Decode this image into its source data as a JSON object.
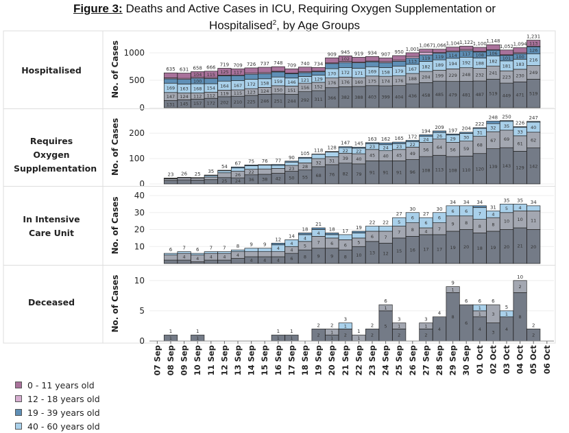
{
  "title": {
    "prefix": "Figure 3:",
    "line1": "Deaths and Active Cases in ICU, Requiring Oxygen Supplementation or",
    "line2": "Hospitalised",
    "sup": "2",
    "line2_rest": ", by Age Groups"
  },
  "chart_data": {
    "type": "bar",
    "stacked": true,
    "grid": true,
    "legend_position": "bottom-left",
    "categories": [
      "07 Sep",
      "08 Sep",
      "09 Sep",
      "10 Sep",
      "11 Sep",
      "12 Sep",
      "13 Sep",
      "14 Sep",
      "15 Sep",
      "16 Sep",
      "17 Sep",
      "18 Sep",
      "19 Sep",
      "20 Sep",
      "21 Sep",
      "22 Sep",
      "23 Sep",
      "24 Sep",
      "25 Sep",
      "26 Sep",
      "27 Sep",
      "28 Sep",
      "29 Sep",
      "30 Sep",
      "01 Oct",
      "02 Oct",
      "03 Oct",
      "04 Oct",
      "05 Oct",
      "06 Oct"
    ],
    "bar_categories": [
      "08 Sep",
      "09 Sep",
      "10 Sep",
      "11 Sep",
      "12 Sep",
      "13 Sep",
      "14 Sep",
      "15 Sep",
      "16 Sep",
      "17 Sep",
      "18 Sep",
      "19 Sep",
      "20 Sep",
      "21 Sep",
      "22 Sep",
      "23 Sep",
      "24 Sep",
      "25 Sep",
      "26 Sep",
      "27 Sep",
      "28 Sep",
      "29 Sep",
      "30 Sep",
      "01 Oct",
      "02 Oct",
      "03 Oct",
      "04 Oct",
      "05 Oct"
    ],
    "legend": [
      {
        "name": "0 - 11 years old",
        "color": "#a9729b"
      },
      {
        "name": "12 - 18 years old",
        "color": "#d6aed0"
      },
      {
        "name": "19 - 39 years old",
        "color": "#5f8fb6"
      },
      {
        "name": "40 - 60 years old",
        "color": "#a9d0ea"
      }
    ],
    "panels": [
      {
        "label": "Hospitalised",
        "ylabel": "No. of Cases",
        "ylim": [
          0,
          1250
        ],
        "yticks": [
          0,
          500,
          1000
        ],
        "totals": [
          635,
          631,
          658,
          666,
          719,
          709,
          726,
          737,
          748,
          709,
          740,
          734,
          909,
          945,
          919,
          934,
          907,
          950,
          1001,
          1067,
          1066,
          1104,
          1122,
          1100,
          1148,
          1052,
          1094,
          1231
        ],
        "total_labels": [
          "635",
          "631",
          "658",
          "666",
          "719",
          "709",
          "726",
          "737",
          "748",
          "709",
          "740",
          "734",
          "909",
          "945",
          "919",
          "934",
          "907",
          "950",
          "1,001",
          "1,067",
          "1,066",
          "1,104",
          "1,122",
          "1,100",
          "1,148",
          "1,052",
          "1,094",
          "1,231"
        ],
        "series": [
          {
            "name": "",
            "color": "#747b87",
            "values": [
              131,
              145,
              157,
              172,
              202,
              210,
              225,
              246,
              251,
              244,
              292,
              311,
              366,
              382,
              388,
              403,
              399,
              404,
              436,
              458,
              485,
              479,
              481,
              487,
              519,
              449,
              471,
              519
            ]
          },
          {
            "name": "",
            "color": "#a3a7b1",
            "values": [
              147,
              124,
              112,
              112,
              119,
              115,
              123,
              124,
              150,
              151,
              156,
              152,
              176,
              176,
              160,
              175,
              174,
              176,
              188,
              204,
              199,
              229,
              248,
              232,
              241,
              223,
              230,
              249
            ]
          },
          {
            "name": "40 - 60 years old",
            "color": "#a9d0ea",
            "values": [
              169,
              163,
              168,
              154,
              164,
              167,
              172,
              158,
              159,
              146,
              121,
              129,
              170,
              172,
              171,
              169,
              158,
              179,
              167,
              182,
              189,
              194,
              192,
              188,
              182,
              181,
              183,
              216
            ]
          },
          {
            "name": "19 - 39 years old",
            "color": "#5f8fb6",
            "values": [
              79,
              85,
              100,
              94,
              97,
              93,
              90,
              92,
              92,
              80,
              70,
              65,
              91,
              93,
              98,
              90,
              89,
              87,
              113,
              119,
              119,
              114,
              117,
              108,
              106,
              101,
              100,
              126
            ]
          },
          {
            "name": "12 - 18 years old",
            "color": "#d6aed0",
            "values": [
              18,
              19,
              17,
              19,
              12,
              7,
              19,
              21,
              12,
              9,
              15,
              15,
              13,
              20,
              14,
              13,
              21,
              19,
              31,
              47,
              12,
              18,
              22,
              11,
              7,
              10,
              18,
              8
            ]
          },
          {
            "name": "0 - 11 years old",
            "color": "#a9729b",
            "values": [
              91,
              95,
              104,
              115,
              125,
              117,
              97,
              96,
              84,
              79,
              86,
              62,
              93,
              102,
              88,
              84,
              66,
              85,
              66,
              57,
              62,
              70,
              62,
              74,
              93,
              88,
              92,
              113
            ]
          }
        ]
      },
      {
        "label": "Requires Oxygen Supplementation",
        "ylabel": "No. of Cases",
        "ylim": [
          0,
          260
        ],
        "yticks": [
          0,
          100,
          200
        ],
        "totals": [
          23,
          26,
          25,
          35,
          54,
          67,
          75,
          76,
          77,
          90,
          105,
          118,
          128,
          147,
          145,
          163,
          162,
          165,
          172,
          194,
          209,
          197,
          204,
          222,
          248,
          250,
          226,
          247
        ],
        "total_labels": [
          "23",
          "26",
          "25",
          "35",
          "54",
          "67",
          "75",
          "76",
          "77",
          "90",
          "105",
          "118",
          "128",
          "147",
          "145",
          "163",
          "162",
          "165",
          "172",
          "194",
          "209",
          "197",
          "204",
          "222",
          "248",
          "250",
          "226",
          "247"
        ],
        "series": [
          {
            "name": "",
            "color": "#747b87",
            "values": [
              14,
              16,
              15,
              17,
              25,
              24,
              36,
              38,
              42,
              50,
              55,
              68,
              76,
              82,
              79,
              91,
              91,
              91,
              96,
              108,
              113,
              108,
              110,
              120,
              139,
              143,
              129,
              142
            ]
          },
          {
            "name": "",
            "color": "#a3a7b1",
            "values": [
              6,
              8,
              8,
              10,
              19,
              26,
              22,
              21,
              19,
              23,
              28,
              32,
              31,
              39,
              40,
              45,
              40,
              45,
              49,
              56,
              64,
              56,
              59,
              68,
              67,
              69,
              61,
              62
            ]
          },
          {
            "name": "40 - 60 years old",
            "color": "#a9d0ea",
            "values": [
              2,
              1,
              1,
              6,
              8,
              13,
              14,
              15,
              12,
              13,
              18,
              17,
              19,
              22,
              22,
              23,
              24,
              23,
              22,
              24,
              26,
              29,
              30,
              31,
              32,
              35,
              33,
              40
            ]
          },
          {
            "name": "19 - 39 years old",
            "color": "#5f8fb6",
            "values": [
              1,
              1,
              1,
              2,
              2,
              4,
              3,
              2,
              4,
              4,
              4,
              1,
              2,
              4,
              4,
              4,
              7,
              6,
              5,
              6,
              6,
              4,
              5,
              3,
              10,
              3,
              3,
              3
            ]
          }
        ]
      },
      {
        "label": "In Intensive Care Unit",
        "ylabel": "No. of Cases",
        "ylim": [
          0,
          40
        ],
        "yticks": [
          10,
          20,
          30,
          40
        ],
        "totals": [
          6,
          7,
          6,
          7,
          7,
          8,
          9,
          9,
          12,
          14,
          18,
          21,
          18,
          17,
          19,
          22,
          22,
          27,
          30,
          27,
          30,
          34,
          34,
          34,
          31,
          35,
          35,
          34
        ],
        "total_labels": [
          "6",
          "7",
          "6",
          "7",
          "7",
          "8",
          "9",
          "9",
          "12",
          "14",
          "18",
          "21",
          "18",
          "17",
          "19",
          "22",
          "22",
          "27",
          "30",
          "27",
          "30",
          "34",
          "34",
          "34",
          "31",
          "35",
          "35",
          "34"
        ],
        "series": [
          {
            "name": "",
            "color": "#747b87",
            "values": [
              2,
              2,
              1,
              2,
              2,
              3,
              4,
              4,
              4,
              6,
              8,
              9,
              9,
              8,
              10,
              13,
              12,
              15,
              16,
              17,
              17,
              19,
              20,
              18,
              19,
              20,
              21,
              20
            ]
          },
          {
            "name": "",
            "color": "#a3a7b1",
            "values": [
              3,
              4,
              4,
              4,
              4,
              4,
              3,
              3,
              3,
              4,
              5,
              7,
              6,
              6,
              5,
              6,
              7,
              7,
              8,
              4,
              7,
              9,
              8,
              8,
              8,
              10,
              10,
              11
            ]
          },
          {
            "name": "40 - 60 years old",
            "color": "#a9d0ea",
            "values": [
              1,
              1,
              1,
              1,
              1,
              1,
              2,
              2,
              4,
              4,
              4,
              4,
              2,
              3,
              3,
              3,
              3,
              5,
              6,
              6,
              6,
              6,
              6,
              7,
              4,
              5,
              4,
              3
            ]
          },
          {
            "name": "19 - 39 years old",
            "color": "#5f8fb6",
            "values": [
              0,
              0,
              0,
              0,
              0,
              0,
              0,
              0,
              1,
              0,
              1,
              1,
              1,
              0,
              1,
              0,
              0,
              0,
              0,
              0,
              0,
              0,
              0,
              1,
              0,
              0,
              0,
              0
            ]
          }
        ]
      },
      {
        "label": "Deceased",
        "ylabel": "No. of Cases",
        "ylim": [
          0,
          11
        ],
        "yticks": [
          0,
          5,
          10
        ],
        "totals": [
          1,
          0,
          1,
          0,
          0,
          0,
          0,
          0,
          1,
          1,
          0,
          2,
          2,
          3,
          1,
          2,
          6,
          3,
          0,
          3,
          4,
          9,
          6,
          6,
          6,
          5,
          10,
          2
        ],
        "total_labels": [
          "1",
          "",
          "1",
          "",
          "",
          "",
          "",
          "",
          "1",
          "1",
          "",
          "2",
          "2",
          "3",
          "1",
          "2",
          "6",
          "3",
          "",
          "3",
          "4",
          "9",
          "6",
          "6",
          "6",
          "5",
          "10",
          "2"
        ],
        "series": [
          {
            "name": "",
            "color": "#747b87",
            "values": [
              1,
              0,
              1,
              0,
              0,
              0,
              0,
              0,
              1,
              1,
              0,
              2,
              1,
              2,
              0,
              2,
              5,
              2,
              0,
              2,
              4,
              8,
              6,
              4,
              3,
              4,
              8,
              2
            ]
          },
          {
            "name": "",
            "color": "#a3a7b1",
            "values": [
              0,
              0,
              0,
              0,
              0,
              0,
              0,
              0,
              0,
              0,
              0,
              0,
              1,
              0,
              1,
              0,
              1,
              1,
              0,
              1,
              0,
              1,
              0,
              1,
              3,
              0,
              2,
              0
            ]
          },
          {
            "name": "40 - 60 years old",
            "color": "#a9d0ea",
            "values": [
              0,
              0,
              0,
              0,
              0,
              0,
              0,
              0,
              0,
              0,
              0,
              0,
              0,
              1,
              0,
              0,
              0,
              0,
              0,
              0,
              0,
              0,
              0,
              1,
              0,
              1,
              0,
              0
            ]
          }
        ]
      }
    ]
  }
}
